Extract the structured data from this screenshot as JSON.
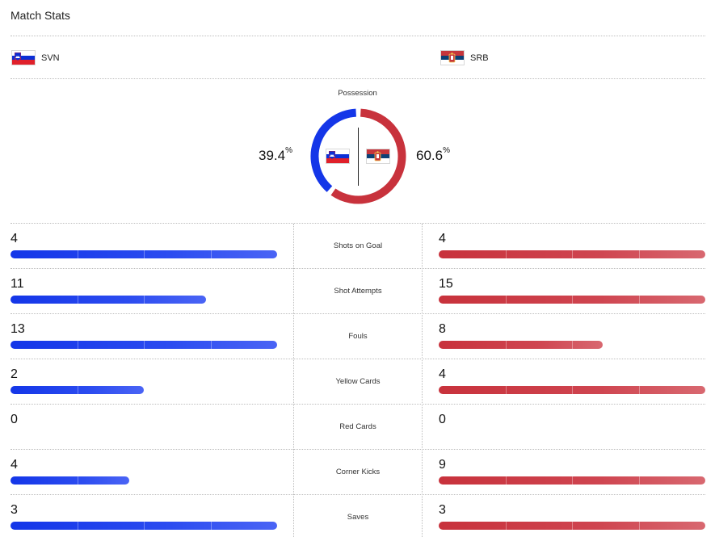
{
  "header": {
    "title": "Match Stats"
  },
  "teams": {
    "home": {
      "abbr": "SVN",
      "flag": "slovenia-flag"
    },
    "away": {
      "abbr": "SRB",
      "flag": "serbia-flag"
    }
  },
  "colors": {
    "home": "#1436e8",
    "away": "#c8323c"
  },
  "possession": {
    "label": "Possession",
    "home": "39.4",
    "away": "60.6",
    "unit": "%"
  },
  "stats": [
    {
      "label": "Shots on Goal",
      "home": "4",
      "away": "4",
      "home_fill": 1.0,
      "away_fill": 1.0
    },
    {
      "label": "Shot Attempts",
      "home": "11",
      "away": "15",
      "home_fill": 0.733,
      "away_fill": 1.0
    },
    {
      "label": "Fouls",
      "home": "13",
      "away": "8",
      "home_fill": 1.0,
      "away_fill": 0.615
    },
    {
      "label": "Yellow Cards",
      "home": "2",
      "away": "4",
      "home_fill": 0.5,
      "away_fill": 1.0
    },
    {
      "label": "Red Cards",
      "home": "0",
      "away": "0",
      "home_fill": 0,
      "away_fill": 0
    },
    {
      "label": "Corner Kicks",
      "home": "4",
      "away": "9",
      "home_fill": 0.444,
      "away_fill": 1.0
    },
    {
      "label": "Saves",
      "home": "3",
      "away": "3",
      "home_fill": 1.0,
      "away_fill": 1.0
    }
  ]
}
